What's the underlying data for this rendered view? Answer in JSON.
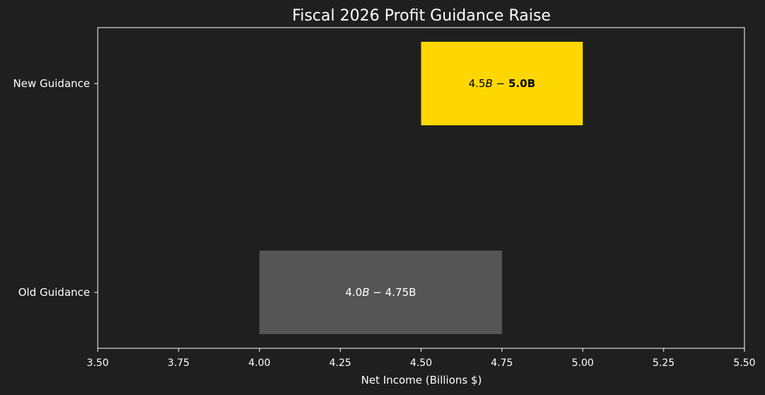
{
  "chart_data": {
    "type": "bar",
    "orientation": "horizontal-range",
    "title": "Fiscal 2026 Profit Guidance Raise",
    "xlabel": "Net Income (Billions $)",
    "ylabel": "",
    "xlim": [
      3.5,
      5.5
    ],
    "xticks": [
      "3.50",
      "3.75",
      "4.00",
      "4.25",
      "4.50",
      "4.75",
      "5.00",
      "5.25",
      "5.50"
    ],
    "grid": false,
    "categories": [
      "New Guidance",
      "Old Guidance"
    ],
    "ranges": [
      {
        "category": "New Guidance",
        "start": 4.5,
        "end": 5.0,
        "color": "#ffd700",
        "label_parts": [
          "4.5",
          "B",
          " − ",
          "5.0B"
        ]
      },
      {
        "category": "Old Guidance",
        "start": 4.0,
        "end": 4.75,
        "color": "#555555",
        "label_parts": [
          "4.0",
          "B",
          " − ",
          "4.75B"
        ]
      }
    ],
    "colors": {
      "background": "#1f1f1f",
      "axes": "#ffffff",
      "new_label_text": "#000000",
      "old_label_text": "#ffffff"
    }
  }
}
